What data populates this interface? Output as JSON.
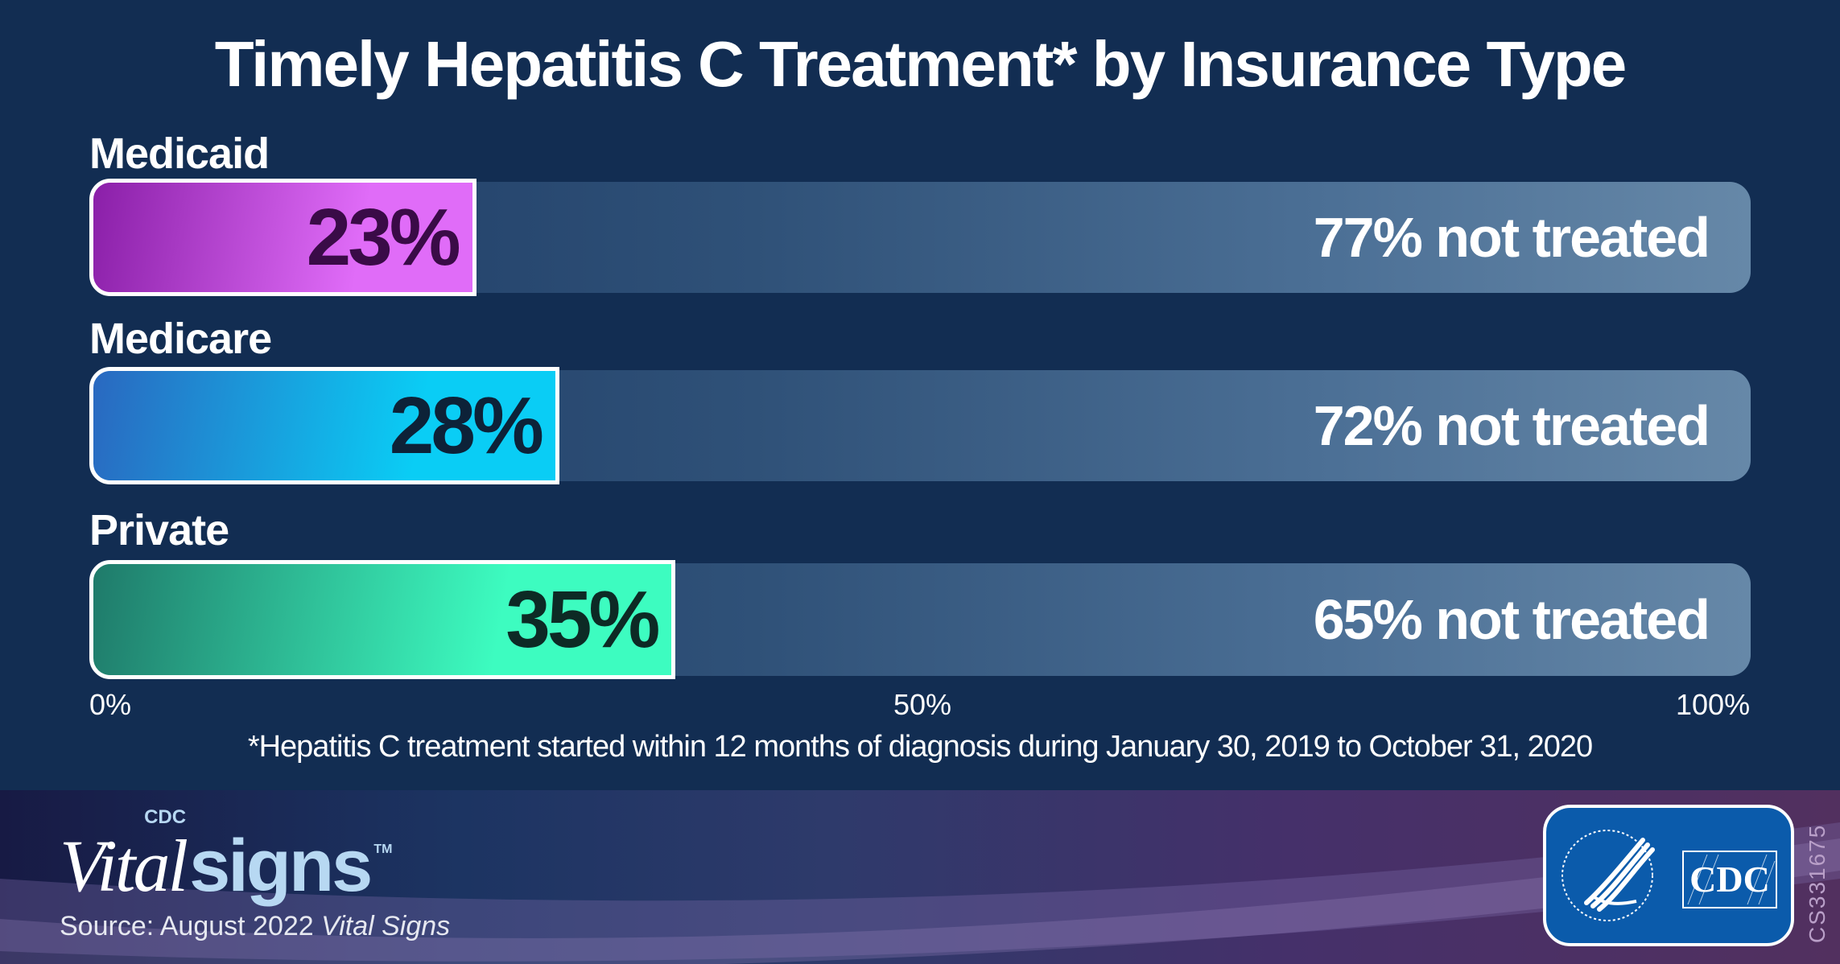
{
  "chart_data": {
    "type": "bar",
    "orientation": "horizontal-stacked",
    "title": "Timely Hepatitis C Treatment* by Insurance Type",
    "categories": [
      "Medicaid",
      "Medicare",
      "Private"
    ],
    "series": [
      {
        "name": "treated",
        "values": [
          23,
          28,
          35
        ],
        "labels": [
          "23%",
          "28%",
          "35%"
        ]
      },
      {
        "name": "not treated",
        "values": [
          77,
          72,
          65
        ],
        "labels": [
          "77% not treated",
          "72% not treated",
          "65% not treated"
        ]
      }
    ],
    "xlim": [
      0,
      100
    ],
    "x_ticks": [
      "0%",
      "50%",
      "100%"
    ],
    "footnote": "*Hepatitis C treatment started within 12 months of diagnosis during January 30, 2019 to October 31, 2020",
    "colors": {
      "Medicaid": {
        "start": "#8a1fa8",
        "end": "#e06cf8",
        "text": "#3a0b47"
      },
      "Medicare": {
        "start": "#2a68c0",
        "end": "#0acdf5",
        "text": "#0d2238"
      },
      "Private": {
        "start": "#1f7a6a",
        "end": "#3dfcc0",
        "text": "#0d2a25"
      },
      "not_treated_track": "#4c7096",
      "background": "#122d52"
    }
  },
  "footer": {
    "brand_cdc": "CDC",
    "brand_vital": "Vital",
    "brand_signs": "signs",
    "brand_tm": "TM",
    "source_prefix": "Source: August 2022 ",
    "source_italic": "Vital Signs",
    "badge_text": "CDC",
    "badge_seal_icon": "hhs-eagle-seal-icon",
    "code": "CS331675"
  }
}
